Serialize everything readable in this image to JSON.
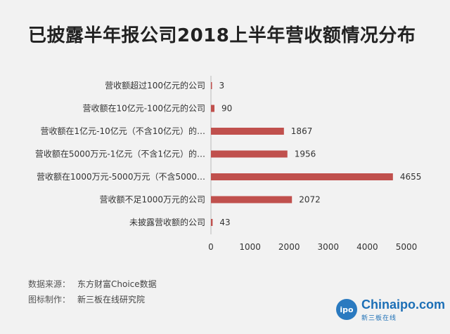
{
  "title": "已披露半年报公司2018上半年营收额情况分布",
  "chart_data": {
    "type": "bar",
    "orientation": "horizontal",
    "categories": [
      "营收额超过100亿元的公司",
      "营收额在10亿元-100亿元的公司",
      "营收额在1亿元-10亿元（不含10亿元）的…",
      "营收额在5000万元-1亿元（不含1亿元）的…",
      "营收额在1000万元-5000万元（不含5000…",
      "营收额不足1000万元的公司",
      "未披露营收额的公司"
    ],
    "values": [
      3,
      90,
      1867,
      1956,
      4655,
      2072,
      43
    ],
    "xlim": [
      0,
      5000
    ],
    "xticks": [
      "0",
      "1000",
      "2000",
      "3000",
      "4000",
      "5000"
    ],
    "bar_color": "#c0504d",
    "grid": false
  },
  "footer": {
    "source_key": "数据来源：",
    "source_value": "东方财富Choice数据",
    "made_key": "图标制作：",
    "made_value": "新三板在线研究院"
  },
  "logo": {
    "badge": "ipo",
    "text": "Chinaipo.com",
    "sub": "新三板在线"
  }
}
